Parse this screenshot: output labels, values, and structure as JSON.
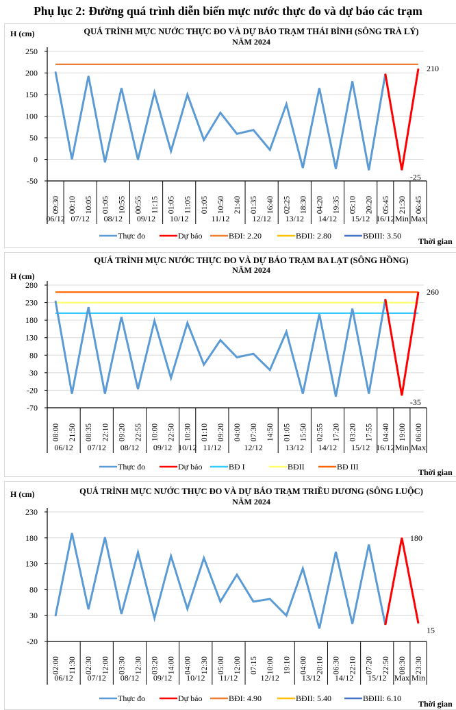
{
  "page": {
    "title": "Phụ lục 2: Đường quá trình diễn biến mực nước thực đo và dự báo các trạm"
  },
  "chart_data": [
    {
      "type": "line",
      "title": "QUÁ TRÌNH MỰC NƯỚC THỰC ĐO VÀ DỰ BÁO TRẠM THÁI BÌNH (SÔNG TRÀ LÝ)",
      "subtitle": "NĂM 2024",
      "ylabel": "H (cm)",
      "xlabel": "Thời gian",
      "ylim": [
        -50,
        250
      ],
      "yticks": [
        -50,
        0,
        50,
        100,
        150,
        200,
        250
      ],
      "grid": true,
      "legend_position": "bottom",
      "times": [
        "09:30",
        "00:10",
        "10:05",
        "01:05",
        "10:55",
        "00:55",
        "11:15",
        "01:05",
        "11:05",
        "01:05",
        "10:50",
        "21:40",
        "01:35",
        "16:40",
        "02:25",
        "18:30",
        "04:20",
        "19:35",
        "05:10",
        "20:20",
        "05:45",
        "21:30",
        "06:45"
      ],
      "groups": [
        {
          "label": "06/12",
          "count": 1
        },
        {
          "label": "07/12",
          "count": 2
        },
        {
          "label": "08/12",
          "count": 2
        },
        {
          "label": "09/12",
          "count": 2
        },
        {
          "label": "10/12",
          "count": 2
        },
        {
          "label": "11/12",
          "count": 3
        },
        {
          "label": "12/12",
          "count": 2
        },
        {
          "label": "13/12",
          "count": 2
        },
        {
          "label": "14/12",
          "count": 2
        },
        {
          "label": "15/12",
          "count": 2
        },
        {
          "label": "16/12",
          "count": 1
        },
        {
          "label": "Min",
          "count": 1
        },
        {
          "label": "Max",
          "count": 1
        }
      ],
      "series": [
        {
          "name": "Thực đo",
          "color": "#5b9bd5",
          "start": 0,
          "values": [
            203,
            0,
            193,
            -7,
            165,
            -1,
            155,
            19,
            150,
            45,
            108,
            59,
            68,
            22,
            128,
            -20,
            165,
            -22,
            181,
            -25,
            198
          ]
        },
        {
          "name": "Dự báo",
          "color": "#ff0000",
          "start": 20,
          "values": [
            198,
            -25,
            210
          ]
        }
      ],
      "thresholds": [
        {
          "name": "BĐI: 2.20",
          "color": "#ed7d31",
          "value": 220,
          "drawn": true
        },
        {
          "name": "BĐII: 2.80",
          "color": "#ffc000",
          "value": 280,
          "drawn": false
        },
        {
          "name": "BĐIII: 3.50",
          "color": "#4472c4",
          "value": 350,
          "drawn": false
        }
      ],
      "annotations": [
        {
          "index": 22,
          "text": "210",
          "value": 210
        },
        {
          "index": 21,
          "text": "-25",
          "value": -25
        }
      ]
    },
    {
      "type": "line",
      "title": "QUÁ TRÌNH MỰC NƯỚC THỰC ĐO VÀ DỰ BÁO TRẠM BA LẠT (SÔNG HỒNG)",
      "subtitle": "NĂM 2024",
      "ylabel": "H (cm)",
      "xlabel": "Thời gian",
      "ylim": [
        -70,
        280
      ],
      "yticks": [
        -70,
        -20,
        30,
        80,
        130,
        180,
        230,
        280
      ],
      "grid": true,
      "legend_position": "bottom",
      "times": [
        "08:00",
        "21:50",
        "08:35",
        "22:10",
        "09:20",
        "22:55",
        "10:00",
        "22:50",
        "10:30",
        "01:10",
        "09:20",
        "04:00",
        "07:30",
        "14:50",
        "01:05",
        "15:50",
        "02:55",
        "17:20",
        "03:20",
        "17:55",
        "04:40",
        "19:00",
        "06:00"
      ],
      "groups": [
        {
          "label": "06/12",
          "count": 2
        },
        {
          "label": "07/12",
          "count": 2
        },
        {
          "label": "08/12",
          "count": 2
        },
        {
          "label": "09/12",
          "count": 2
        },
        {
          "label": "10/12",
          "count": 1
        },
        {
          "label": "11/12",
          "count": 2
        },
        {
          "label": "12/12",
          "count": 3
        },
        {
          "label": "13/12",
          "count": 2
        },
        {
          "label": "14/12",
          "count": 2
        },
        {
          "label": "15/12",
          "count": 2
        },
        {
          "label": "16/12",
          "count": 1
        },
        {
          "label": "Min",
          "count": 1
        },
        {
          "label": "Max",
          "count": 1
        }
      ],
      "series": [
        {
          "name": "Thực đo",
          "color": "#5b9bd5",
          "start": 0,
          "values": [
            235,
            -30,
            217,
            -30,
            189,
            -17,
            178,
            15,
            172,
            53,
            123,
            74,
            84,
            38,
            147,
            -30,
            197,
            -38,
            213,
            -30,
            240
          ]
        },
        {
          "name": "Dự báo",
          "color": "#ff0000",
          "start": 20,
          "values": [
            240,
            -35,
            260
          ]
        }
      ],
      "thresholds": [
        {
          "name": "BĐ I",
          "color": "#33ccff",
          "value": 200,
          "drawn": true
        },
        {
          "name": "BĐII",
          "color": "#ffff66",
          "value": 230,
          "drawn": true
        },
        {
          "name": "BĐ III",
          "color": "#ff6600",
          "value": 260,
          "drawn": true
        }
      ],
      "annotations": [
        {
          "index": 22,
          "text": "260",
          "value": 260
        },
        {
          "index": 21,
          "text": "-35",
          "value": -35
        }
      ]
    },
    {
      "type": "line",
      "title": "QUÁ TRÌNH MỰC NƯỚC THỰC ĐO VÀ DỰ BÁO TRẠM TRIỀU DƯƠNG (SÔNG LUỘC)",
      "subtitle": "NĂM 2024",
      "ylabel": "H (cm)",
      "xlabel": "Thời gian",
      "ylim": [
        -20,
        250
      ],
      "yticks": [
        -20,
        30,
        80,
        130,
        180,
        230
      ],
      "grid": true,
      "legend_position": "bottom",
      "times": [
        "02:00",
        "11:30",
        "02:30",
        "12:00",
        "03:30",
        "12:30",
        "03:20",
        "14:00",
        "04:00",
        "12:30",
        "05:00",
        "12:00",
        "07:15",
        "10:00",
        "19:10",
        "04:00",
        "20:10",
        "06:30",
        "22:10",
        "07:20",
        "22:50",
        "08:30",
        "23:30"
      ],
      "groups": [
        {
          "label": "06/12",
          "count": 2
        },
        {
          "label": "07/12",
          "count": 2
        },
        {
          "label": "08/12",
          "count": 2
        },
        {
          "label": "09/12",
          "count": 2
        },
        {
          "label": "10/12",
          "count": 2
        },
        {
          "label": "11/12",
          "count": 2
        },
        {
          "label": "12/12",
          "count": 3
        },
        {
          "label": "13/12",
          "count": 2
        },
        {
          "label": "14/12",
          "count": 2
        },
        {
          "label": "15/12",
          "count": 2
        },
        {
          "label": "Max",
          "count": 1
        },
        {
          "label": "Min",
          "count": 1
        }
      ],
      "series": [
        {
          "name": "Thực đo",
          "color": "#5b9bd5",
          "start": 0,
          "values": [
            29,
            189,
            42,
            181,
            33,
            152,
            25,
            145,
            43,
            141,
            57,
            109,
            57,
            62,
            30,
            121,
            5,
            153,
            14,
            167,
            12
          ]
        },
        {
          "name": "Dự báo",
          "color": "#ff0000",
          "start": 20,
          "values": [
            12,
            180,
            15
          ]
        }
      ],
      "thresholds": [
        {
          "name": "BĐI: 4.90",
          "color": "#ed7d31",
          "value": 490,
          "drawn": false
        },
        {
          "name": "BĐII: 5.40",
          "color": "#ffc000",
          "value": 540,
          "drawn": false
        },
        {
          "name": "BĐIII: 6.10",
          "color": "#4472c4",
          "value": 610,
          "drawn": false
        }
      ],
      "annotations": [
        {
          "index": 21,
          "text": "180",
          "value": 180
        },
        {
          "index": 22,
          "text": "15",
          "value": 15
        }
      ]
    }
  ]
}
